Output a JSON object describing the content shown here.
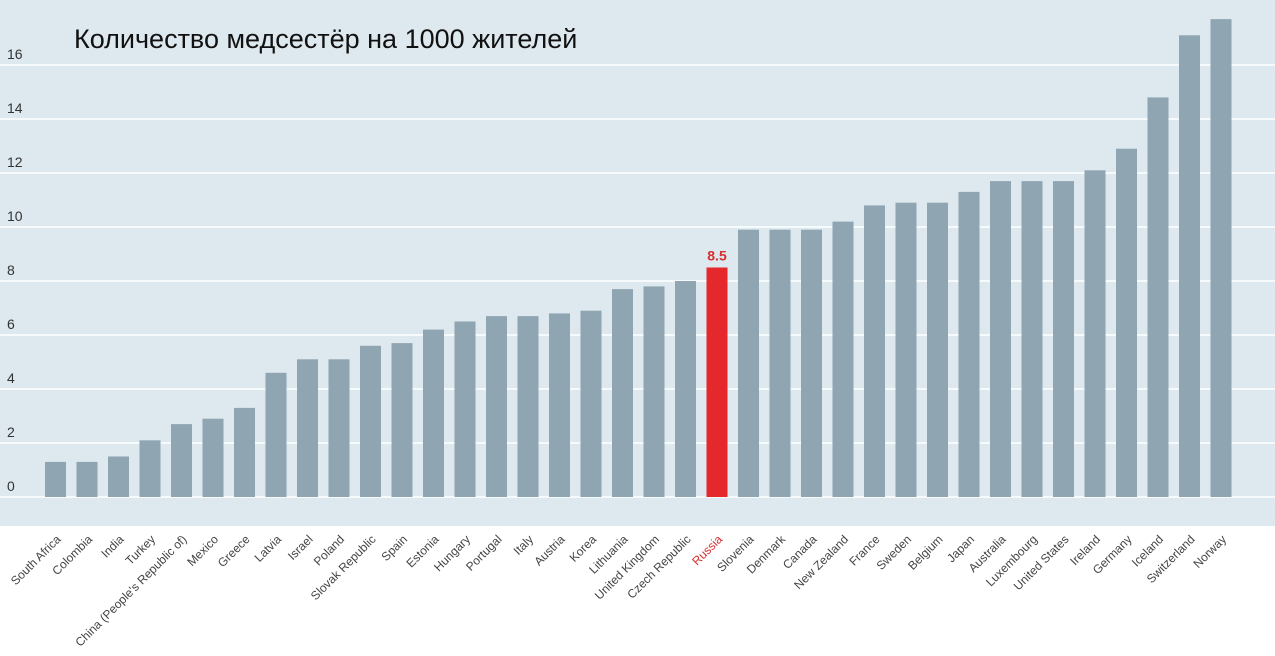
{
  "chart_data": {
    "type": "bar",
    "title": "Количество медсестёр на 1000 жителей",
    "xlabel": "",
    "ylabel": "",
    "ylim": [
      0,
      17.7
    ],
    "yticks": [
      0,
      2,
      4,
      6,
      8,
      10,
      12,
      14,
      16
    ],
    "grid": true,
    "legend": "none",
    "categories": [
      "South Africa",
      "Colombia",
      "India",
      "Turkey",
      "China (People's Republic of)",
      "Mexico",
      "Greece",
      "Latvia",
      "Israel",
      "Poland",
      "Slovak Republic",
      "Spain",
      "Estonia",
      "Hungary",
      "Portugal",
      "Italy",
      "Austria",
      "Korea",
      "Lithuania",
      "United Kingdom",
      "Czech Republic",
      "Russia",
      "Slovenia",
      "Denmark",
      "Canada",
      "New Zealand",
      "France",
      "Sweden",
      "Belgium",
      "Japan",
      "Australia",
      "Luxembourg",
      "United States",
      "Ireland",
      "Germany",
      "Iceland",
      "Switzerland",
      "Norway"
    ],
    "values": [
      1.3,
      1.3,
      1.5,
      2.1,
      2.7,
      2.9,
      3.3,
      4.6,
      5.1,
      5.1,
      5.6,
      5.7,
      6.2,
      6.5,
      6.7,
      6.7,
      6.8,
      6.9,
      7.7,
      7.8,
      8.0,
      8.5,
      9.9,
      9.9,
      9.9,
      10.2,
      10.8,
      10.9,
      10.9,
      11.3,
      11.7,
      11.7,
      11.7,
      12.1,
      12.9,
      14.8,
      17.1,
      17.7
    ],
    "highlight": {
      "category": "Russia",
      "label": "8.5"
    },
    "colors": {
      "background": "#dde8ef",
      "bar": "#8fa5b2",
      "highlight": "#e4282c",
      "grid": "#ffffff"
    }
  }
}
